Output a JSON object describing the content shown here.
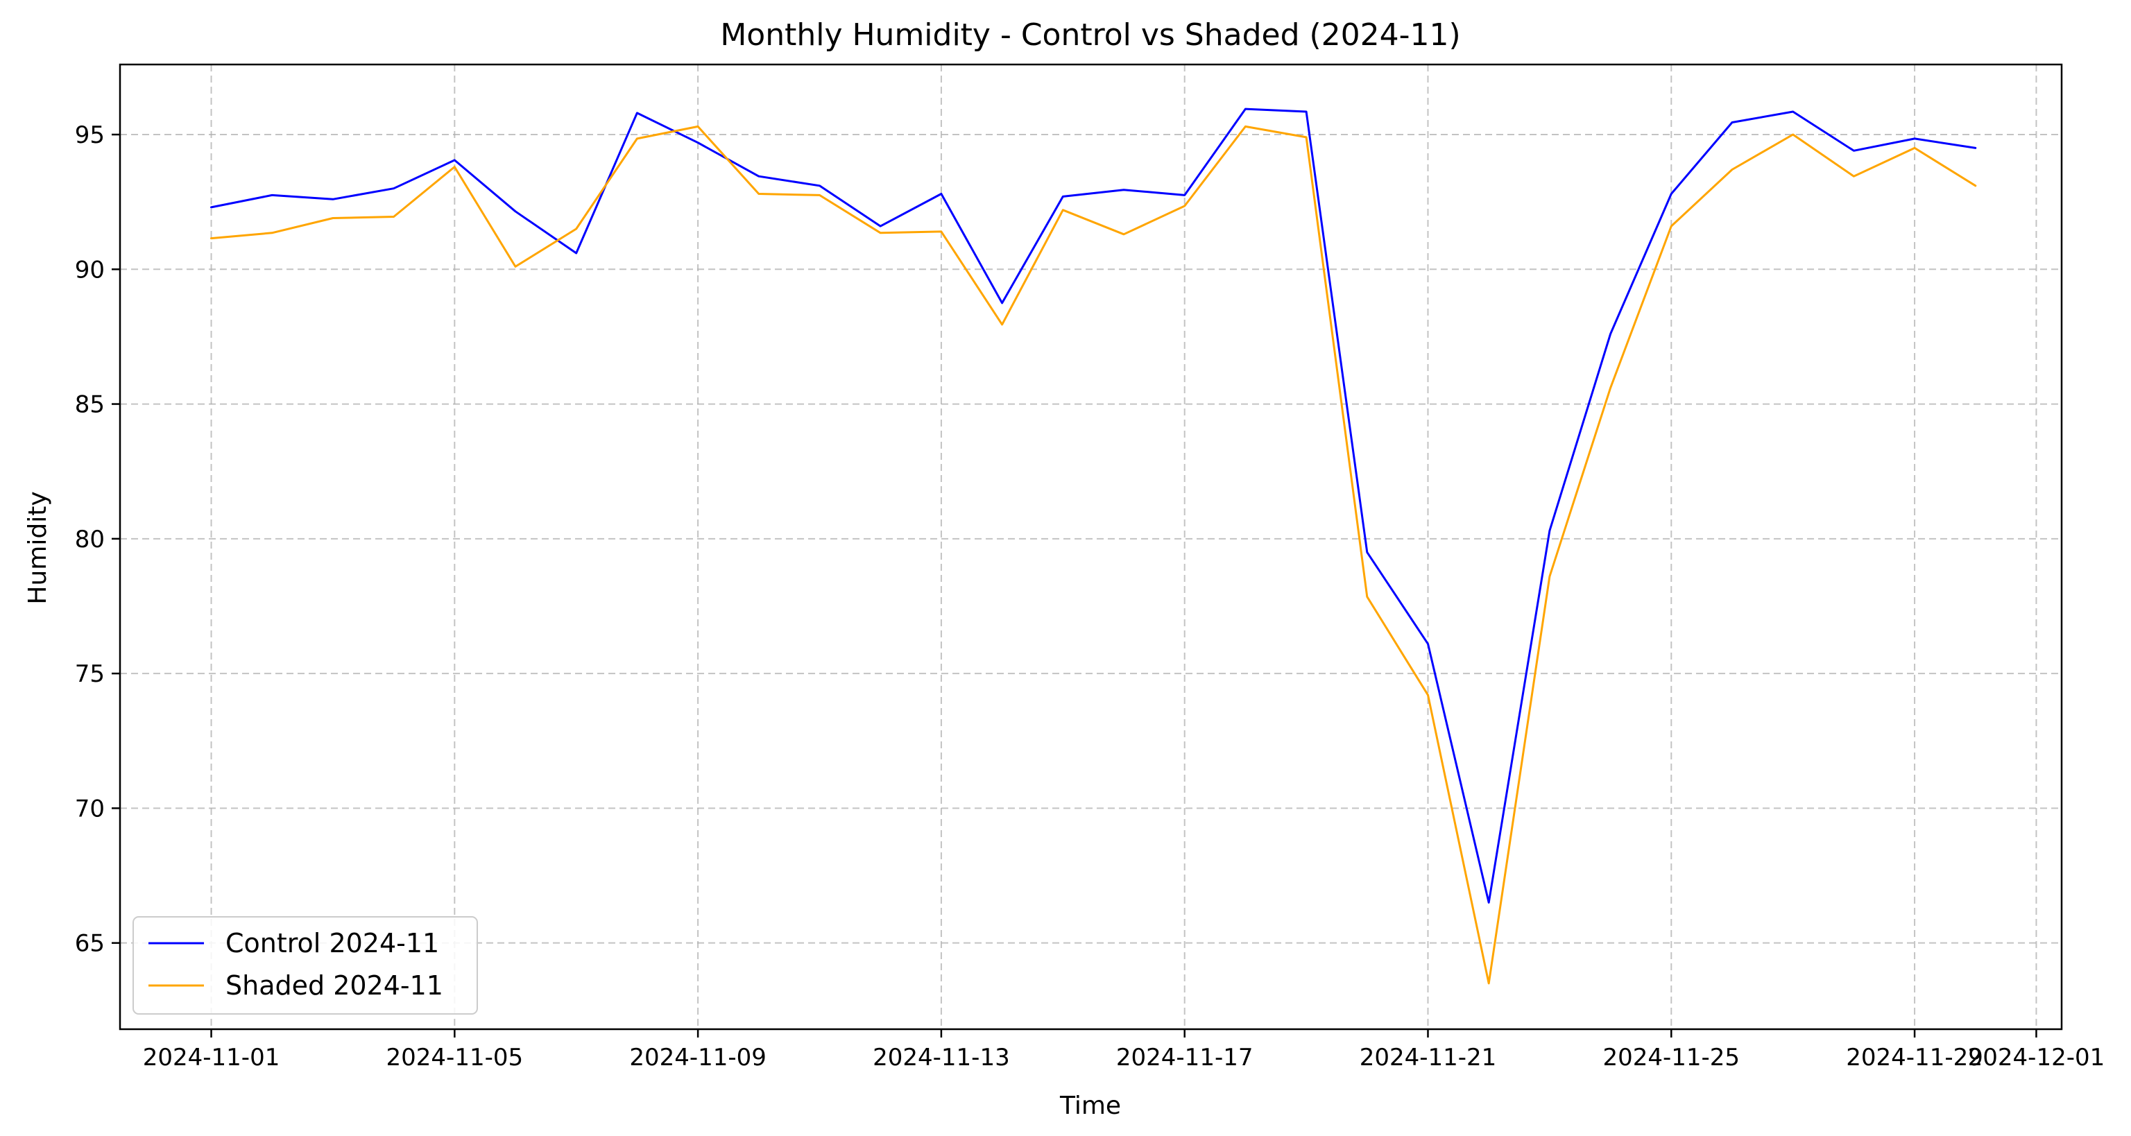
{
  "chart_data": {
    "type": "line",
    "title": "Monthly Humidity - Control vs Shaded (2024-11)",
    "xlabel": "Time",
    "ylabel": "Humidity",
    "x_type": "date",
    "xlim": [
      "2024-10-30T12:00",
      "2024-12-01T10:00"
    ],
    "ylim": [
      61.8,
      97.6
    ],
    "xticks": [
      "2024-11-01",
      "2024-11-05",
      "2024-11-09",
      "2024-11-13",
      "2024-11-17",
      "2024-11-21",
      "2024-11-25",
      "2024-11-29",
      "2024-12-01"
    ],
    "yticks": [
      65,
      70,
      75,
      80,
      85,
      90,
      95
    ],
    "grid": true,
    "legend_position": "lower-left",
    "x": [
      "2024-11-01",
      "2024-11-02",
      "2024-11-03",
      "2024-11-04",
      "2024-11-05",
      "2024-11-06",
      "2024-11-07",
      "2024-11-08",
      "2024-11-09",
      "2024-11-10",
      "2024-11-11",
      "2024-11-12",
      "2024-11-13",
      "2024-11-14",
      "2024-11-15",
      "2024-11-16",
      "2024-11-17",
      "2024-11-18",
      "2024-11-19",
      "2024-11-20",
      "2024-11-21",
      "2024-11-22",
      "2024-11-23",
      "2024-11-24",
      "2024-11-25",
      "2024-11-26",
      "2024-11-27",
      "2024-11-28",
      "2024-11-29",
      "2024-11-30"
    ],
    "series": [
      {
        "name": "Control 2024-11",
        "color": "#0000ff",
        "values": [
          92.3,
          92.75,
          92.6,
          93.0,
          94.05,
          92.15,
          90.6,
          95.8,
          94.7,
          93.45,
          93.1,
          91.6,
          92.8,
          88.75,
          92.7,
          92.95,
          92.75,
          95.95,
          95.85,
          79.5,
          76.1,
          66.5,
          80.3,
          87.6,
          92.8,
          95.45,
          95.85,
          94.4,
          94.85,
          94.5
        ]
      },
      {
        "name": "Shaded 2024-11",
        "color": "#ffa500",
        "values": [
          91.15,
          91.35,
          91.9,
          91.95,
          93.8,
          90.1,
          91.5,
          94.85,
          95.3,
          92.8,
          92.75,
          91.35,
          91.4,
          87.95,
          92.2,
          91.3,
          92.35,
          95.3,
          94.9,
          77.85,
          74.2,
          63.5,
          78.6,
          85.6,
          91.6,
          93.7,
          95.0,
          93.45,
          94.5,
          93.1
        ]
      }
    ]
  }
}
